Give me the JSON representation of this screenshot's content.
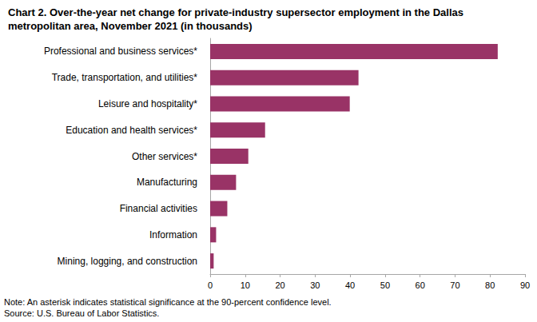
{
  "chart_data": {
    "type": "bar",
    "orientation": "horizontal",
    "title": "Chart 2. Over-the-year net change for private-industry supersector employment in the Dallas metropolitan area, November 2021 (in thousands)",
    "categories": [
      "Professional and business services*",
      "Trade, transportation, and utilities*",
      "Leisure and hospitality*",
      "Education and health services*",
      "Other services*",
      "Manufacturing",
      "Financial activities",
      "Information",
      "Mining, logging, and construction"
    ],
    "values": [
      82.2,
      42.4,
      39.9,
      15.7,
      10.9,
      7.4,
      4.9,
      1.7,
      1.0
    ],
    "color": "#993366",
    "xlim": [
      0,
      90
    ],
    "xticks": [
      0,
      10,
      20,
      30,
      40,
      50,
      60,
      70,
      80,
      90
    ],
    "grid": false,
    "annotations": [
      "Note: An asterisk indicates statistical significance at the 90-percent confidence level.",
      "Source: U.S. Bureau of Labor Statistics."
    ]
  }
}
